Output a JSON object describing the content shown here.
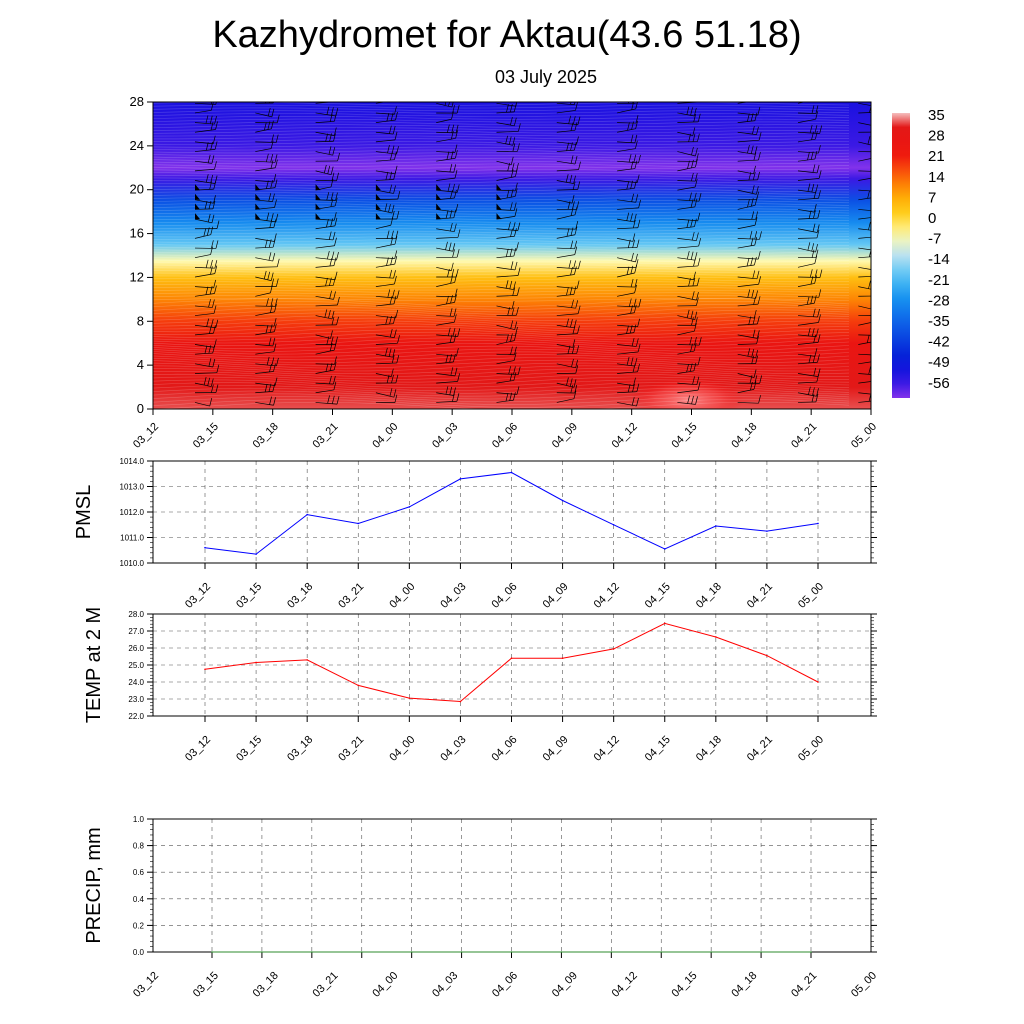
{
  "title": "Kazhydromet for Aktau(43.6 51.18)",
  "subtitle": "03 July 2025",
  "chart_data": [
    {
      "type": "heatmap",
      "name": "Vertical cross-section: temperature with wind barbs",
      "x": [
        "03_12",
        "03_15",
        "03_18",
        "03_21",
        "04_00",
        "04_03",
        "04_06",
        "04_09",
        "04_12",
        "04_15",
        "04_18",
        "04_21",
        "05_00"
      ],
      "y_ticks": [
        0,
        4,
        8,
        12,
        16,
        20,
        24,
        28
      ],
      "ylim": [
        0,
        28
      ],
      "colorbar": {
        "labels": [
          "35",
          "28",
          "21",
          "14",
          "7",
          "0",
          "-7",
          "-14",
          "-21",
          "-28",
          "-35",
          "-42",
          "-49",
          "-56"
        ],
        "range": [
          -63,
          35
        ]
      },
      "temperature_profile": [
        {
          "y": 0,
          "t": 33
        },
        {
          "y": 2,
          "t": 31
        },
        {
          "y": 4,
          "t": 28
        },
        {
          "y": 6,
          "t": 24
        },
        {
          "y": 8,
          "t": 17
        },
        {
          "y": 10,
          "t": 10
        },
        {
          "y": 12,
          "t": 3
        },
        {
          "y": 13.5,
          "t": -7
        },
        {
          "y": 15,
          "t": -20
        },
        {
          "y": 17,
          "t": -30
        },
        {
          "y": 19,
          "t": -40
        },
        {
          "y": 21,
          "t": -58
        },
        {
          "y": 22,
          "t": -63
        },
        {
          "y": 24,
          "t": -58
        },
        {
          "y": 28,
          "t": -55
        }
      ]
    },
    {
      "type": "line",
      "ylabel": "PMSL",
      "x": [
        "03_12",
        "03_15",
        "03_18",
        "03_21",
        "04_00",
        "04_03",
        "04_06",
        "04_09",
        "04_12",
        "04_15",
        "04_18",
        "04_21",
        "05_00"
      ],
      "values": [
        1010.6,
        1010.35,
        1011.9,
        1011.55,
        1012.2,
        1013.3,
        1013.55,
        1012.45,
        1011.5,
        1010.55,
        1011.45,
        1011.25,
        1011.55
      ],
      "ylim": [
        1010.0,
        1014.0
      ],
      "y_ticks": [
        "1010.0",
        "1011.0",
        "1012.0",
        "1013.0",
        "1014.0"
      ],
      "color": "#0000ff",
      "grid": true
    },
    {
      "type": "line",
      "ylabel": "TEMP at 2 M",
      "x": [
        "03_12",
        "03_15",
        "03_18",
        "03_21",
        "04_00",
        "04_03",
        "04_06",
        "04_09",
        "04_12",
        "04_15",
        "04_18",
        "04_21",
        "05_00"
      ],
      "values": [
        24.75,
        25.15,
        25.3,
        23.8,
        23.05,
        22.85,
        25.4,
        25.4,
        25.95,
        27.45,
        26.65,
        25.55,
        24.0
      ],
      "ylim": [
        22.0,
        28.0
      ],
      "y_ticks": [
        "22.0",
        "23.0",
        "24.0",
        "25.0",
        "26.0",
        "27.0",
        "28.0"
      ],
      "color": "#ff0000",
      "grid": true
    },
    {
      "type": "line",
      "ylabel": "PRECIP, mm",
      "x": [
        "03_12",
        "03_15",
        "03_18",
        "03_21",
        "04_00",
        "04_03",
        "04_06",
        "04_09",
        "04_12",
        "04_15",
        "04_18",
        "04_21",
        "05_00"
      ],
      "values": [
        0,
        0,
        0,
        0,
        0,
        0,
        0,
        0,
        0,
        0,
        0,
        0,
        0
      ],
      "ylim": [
        0.0,
        1.0
      ],
      "y_ticks": [
        "0.0",
        "0.2",
        "0.4",
        "0.6",
        "0.8",
        "1.0"
      ],
      "color": "#2e8b2e",
      "grid": true
    }
  ]
}
